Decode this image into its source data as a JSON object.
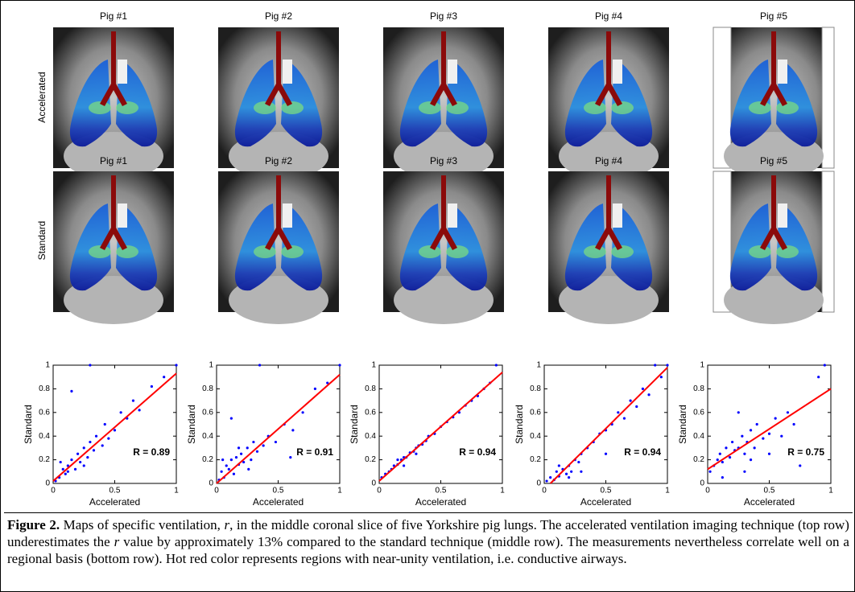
{
  "figure": {
    "rows": [
      {
        "label": "Accelerated",
        "panels": [
          "Pig #1",
          "Pig #2",
          "Pig #3",
          "Pig #4",
          "Pig #5"
        ]
      },
      {
        "label": "Standard",
        "panels": [
          "Pig #1",
          "Pig #2",
          "Pig #3",
          "Pig #4",
          "Pig #5"
        ]
      }
    ]
  },
  "chart_data": [
    {
      "type": "scatter",
      "xlabel": "Accelerated",
      "ylabel": "Standard",
      "annotation": "R = 0.89",
      "xlim": [
        0,
        1
      ],
      "ylim": [
        0,
        1
      ],
      "xticks": [
        0,
        0.5,
        1
      ],
      "yticks": [
        0,
        0.2,
        0.4,
        0.6,
        0.8,
        1
      ],
      "series": [
        {
          "color": "#0000ff",
          "x": [
            0.02,
            0.05,
            0.08,
            0.1,
            0.12,
            0.15,
            0.18,
            0.2,
            0.22,
            0.25,
            0.28,
            0.3,
            0.33,
            0.35,
            0.4,
            0.42,
            0.45,
            0.5,
            0.55,
            0.6,
            0.65,
            0.7,
            0.8,
            0.9,
            1,
            0.3,
            0.15,
            0.12,
            0.06,
            0.25
          ],
          "values": [
            0.02,
            0.05,
            0.12,
            0.08,
            0.15,
            0.2,
            0.12,
            0.25,
            0.18,
            0.3,
            0.22,
            0.35,
            0.28,
            0.4,
            0.32,
            0.5,
            0.38,
            0.45,
            0.6,
            0.55,
            0.7,
            0.62,
            0.82,
            0.9,
            1,
            1,
            0.78,
            0.1,
            0.18,
            0.15
          ]
        }
      ],
      "fit": {
        "color": "#ff0000",
        "x": [
          0,
          1
        ],
        "y": [
          0.02,
          0.93
        ]
      }
    },
    {
      "type": "scatter",
      "xlabel": "Accelerated",
      "ylabel": "Standard",
      "annotation": "R = 0.91",
      "xlim": [
        0,
        1
      ],
      "ylim": [
        0,
        1
      ],
      "xticks": [
        0,
        0.5,
        1
      ],
      "yticks": [
        0,
        0.2,
        0.4,
        0.6,
        0.8,
        1
      ],
      "series": [
        {
          "color": "#0000ff",
          "x": [
            0.02,
            0.04,
            0.06,
            0.08,
            0.1,
            0.12,
            0.14,
            0.16,
            0.18,
            0.2,
            0.22,
            0.25,
            0.28,
            0.3,
            0.33,
            0.38,
            0.42,
            0.48,
            0.55,
            0.62,
            0.7,
            0.8,
            0.9,
            1,
            0.35,
            0.12,
            0.05,
            0.18,
            0.26,
            0.6
          ],
          "values": [
            0.03,
            0.1,
            0.05,
            0.15,
            0.12,
            0.2,
            0.08,
            0.22,
            0.16,
            0.25,
            0.18,
            0.3,
            0.2,
            0.35,
            0.27,
            0.32,
            0.4,
            0.35,
            0.5,
            0.45,
            0.6,
            0.8,
            0.85,
            1,
            1,
            0.55,
            0.2,
            0.3,
            0.12,
            0.22
          ]
        }
      ],
      "fit": {
        "color": "#ff0000",
        "x": [
          0,
          1
        ],
        "y": [
          0,
          0.92
        ]
      }
    },
    {
      "type": "scatter",
      "xlabel": "Accelerated",
      "ylabel": "Standard",
      "annotation": "R = 0.94",
      "xlim": [
        0,
        1
      ],
      "ylim": [
        0,
        1
      ],
      "xticks": [
        0,
        0.5,
        1
      ],
      "yticks": [
        0,
        0.2,
        0.4,
        0.6,
        0.8,
        1
      ],
      "series": [
        {
          "color": "#0000ff",
          "x": [
            0.02,
            0.05,
            0.08,
            0.1,
            0.12,
            0.15,
            0.18,
            0.2,
            0.22,
            0.25,
            0.28,
            0.3,
            0.32,
            0.35,
            0.38,
            0.4,
            0.45,
            0.5,
            0.55,
            0.6,
            0.65,
            0.7,
            0.75,
            0.8,
            0.85,
            0.9,
            0.95,
            0.2,
            0.3,
            0.15
          ],
          "values": [
            0.05,
            0.08,
            0.1,
            0.12,
            0.15,
            0.16,
            0.2,
            0.22,
            0.22,
            0.26,
            0.27,
            0.3,
            0.32,
            0.33,
            0.36,
            0.4,
            0.42,
            0.48,
            0.52,
            0.56,
            0.6,
            0.66,
            0.7,
            0.74,
            0.8,
            0.85,
            1,
            0.15,
            0.25,
            0.2
          ]
        }
      ],
      "fit": {
        "color": "#ff0000",
        "x": [
          0,
          1
        ],
        "y": [
          0.02,
          0.94
        ]
      }
    },
    {
      "type": "scatter",
      "xlabel": "Accelerated",
      "ylabel": "Standard",
      "annotation": "R = 0.94",
      "xlim": [
        0,
        1
      ],
      "ylim": [
        0,
        1
      ],
      "xticks": [
        0,
        0.5,
        1
      ],
      "yticks": [
        0,
        0.2,
        0.4,
        0.6,
        0.8,
        1
      ],
      "series": [
        {
          "color": "#0000ff",
          "x": [
            0.02,
            0.05,
            0.08,
            0.1,
            0.12,
            0.15,
            0.18,
            0.2,
            0.22,
            0.25,
            0.28,
            0.3,
            0.35,
            0.4,
            0.45,
            0.5,
            0.55,
            0.6,
            0.65,
            0.7,
            0.75,
            0.8,
            0.85,
            0.9,
            0.95,
            1,
            0.3,
            0.2,
            0.12,
            0.5
          ],
          "values": [
            0.02,
            0.05,
            0.03,
            0.1,
            0.06,
            0.12,
            0.08,
            0.15,
            0.1,
            0.2,
            0.18,
            0.25,
            0.3,
            0.35,
            0.42,
            0.45,
            0.5,
            0.6,
            0.55,
            0.7,
            0.65,
            0.8,
            0.75,
            1,
            0.9,
            1,
            0.1,
            0.05,
            0.15,
            0.25
          ]
        }
      ],
      "fit": {
        "color": "#ff0000",
        "x": [
          0.05,
          1
        ],
        "y": [
          0,
          0.98
        ]
      }
    },
    {
      "type": "scatter",
      "xlabel": "Accelerated",
      "ylabel": "Standard",
      "annotation": "R = 0.75",
      "xlim": [
        0,
        1
      ],
      "ylim": [
        0,
        1
      ],
      "xticks": [
        0,
        0.5,
        1
      ],
      "yticks": [
        0,
        0.2,
        0.4,
        0.6,
        0.8,
        1
      ],
      "series": [
        {
          "color": "#0000ff",
          "x": [
            0.02,
            0.05,
            0.08,
            0.1,
            0.12,
            0.15,
            0.18,
            0.2,
            0.22,
            0.25,
            0.28,
            0.3,
            0.32,
            0.35,
            0.38,
            0.4,
            0.45,
            0.5,
            0.55,
            0.6,
            0.65,
            0.7,
            0.75,
            0.9,
            0.95,
            0.12,
            0.25,
            0.35,
            0.5,
            0.3
          ],
          "values": [
            0.1,
            0.15,
            0.2,
            0.25,
            0.18,
            0.3,
            0.22,
            0.35,
            0.28,
            0.3,
            0.4,
            0.25,
            0.35,
            0.45,
            0.3,
            0.5,
            0.38,
            0.42,
            0.55,
            0.4,
            0.6,
            0.5,
            0.15,
            0.9,
            1,
            0.05,
            0.6,
            0.2,
            0.25,
            0.1
          ]
        }
      ],
      "fit": {
        "color": "#ff0000",
        "x": [
          0,
          1
        ],
        "y": [
          0.12,
          0.8
        ]
      }
    }
  ],
  "caption": {
    "parts": [
      "Figure 2.",
      " Maps of specific ventilation, ",
      "r",
      ", in the middle coronal slice of five Yorkshire pig lungs. The accelerated ventilation imaging technique (top row) underestimates the ",
      "r",
      " value by approximately 13% compared to the standard technique (middle row). The measurements nevertheless correlate well on a regional basis (bottom row). Hot red color represents regions with near-unity ventilation, i.e. conductive airways."
    ]
  }
}
